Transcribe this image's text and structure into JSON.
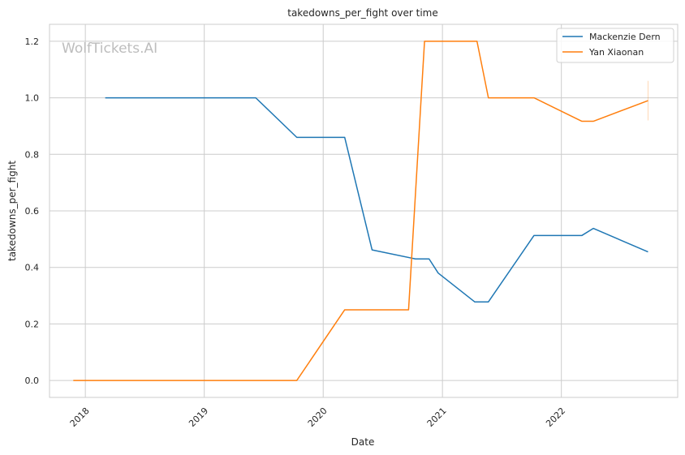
{
  "chart_data": {
    "type": "line",
    "title": "takedowns_per_fight over time",
    "xlabel": "Date",
    "ylabel": "takedowns_per_fight",
    "watermark": "WolfTickets.AI",
    "xlim": [
      "2017-09-13",
      "2022-12-24"
    ],
    "ylim": [
      -0.06,
      1.26
    ],
    "x_ticks": [
      "2018-01-01",
      "2019-01-01",
      "2020-01-01",
      "2021-01-01",
      "2022-01-01"
    ],
    "x_tick_labels": [
      "2018",
      "2019",
      "2020",
      "2021",
      "2022"
    ],
    "y_ticks": [
      0.0,
      0.2,
      0.4,
      0.6,
      0.8,
      1.0,
      1.2
    ],
    "y_tick_labels": [
      "0.0",
      "0.2",
      "0.4",
      "0.6",
      "0.8",
      "1.0",
      "1.2"
    ],
    "grid": true,
    "legend_position": "top-right",
    "series": [
      {
        "name": "Mackenzie Dern",
        "color": "#1f77b4",
        "points": [
          [
            "2018-03-03",
            1.0
          ],
          [
            "2019-06-08",
            1.0
          ],
          [
            "2019-10-12",
            0.86
          ],
          [
            "2020-03-07",
            0.86
          ],
          [
            "2020-05-30",
            0.462
          ],
          [
            "2020-10-10",
            0.43
          ],
          [
            "2020-11-21",
            0.43
          ],
          [
            "2020-12-19",
            0.38
          ],
          [
            "2021-04-10",
            0.278
          ],
          [
            "2021-05-22",
            0.278
          ],
          [
            "2021-10-09",
            0.513
          ],
          [
            "2022-03-05",
            0.513
          ],
          [
            "2022-04-09",
            0.538
          ],
          [
            "2022-09-24",
            0.455
          ]
        ]
      },
      {
        "name": "Yan Xiaonan",
        "color": "#ff7f0e",
        "points": [
          [
            "2017-11-25",
            0.0
          ],
          [
            "2019-10-12",
            0.0
          ],
          [
            "2020-03-07",
            0.25
          ],
          [
            "2020-09-19",
            0.25
          ],
          [
            "2020-11-07",
            1.2
          ],
          [
            "2021-04-17",
            1.2
          ],
          [
            "2021-05-22",
            1.0
          ],
          [
            "2021-10-09",
            1.0
          ],
          [
            "2022-03-05",
            0.917
          ],
          [
            "2022-04-09",
            0.917
          ],
          [
            "2022-09-24",
            0.99
          ]
        ],
        "error_bar": {
          "x": "2022-09-24",
          "low": 0.92,
          "high": 1.06
        }
      }
    ]
  }
}
